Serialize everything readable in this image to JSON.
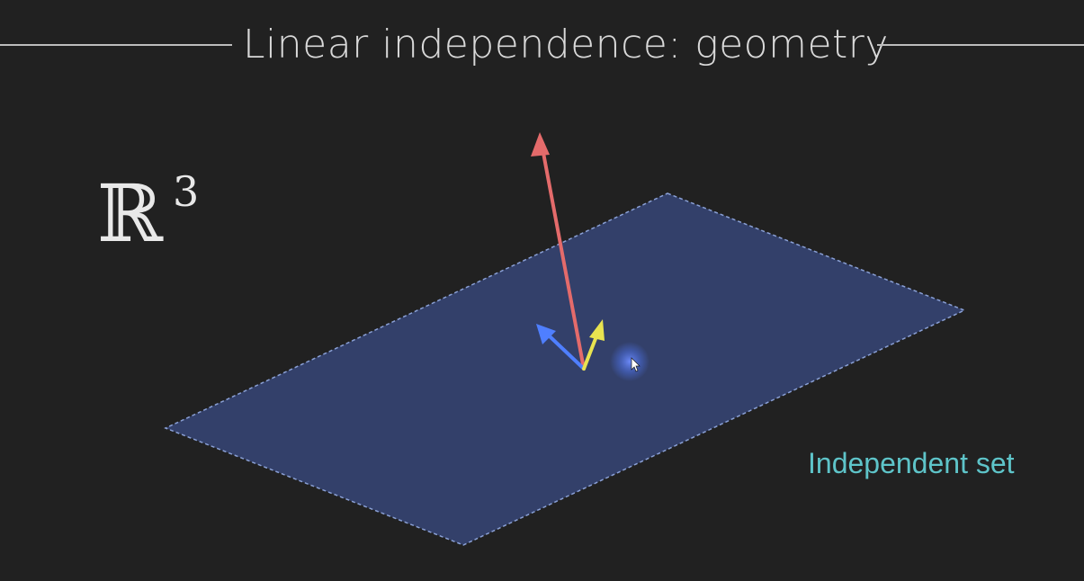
{
  "slide": {
    "title": "Linear independence: geometry",
    "space_symbol": "ℝ",
    "space_exponent": "3",
    "status_label": "Independent set"
  },
  "scene": {
    "plane_fill": "#33406a",
    "plane_edge": "#8aa0d6",
    "vectors": [
      {
        "name": "red-vector",
        "color": "#e46b6b"
      },
      {
        "name": "blue-vector",
        "color": "#4f7fff"
      },
      {
        "name": "yellow-vector",
        "color": "#e8e350"
      }
    ],
    "cursor_halo": "#4a6cd8"
  },
  "colors": {
    "background": "#212121",
    "title_text": "#d9d9d9",
    "status_text": "#5ec4c9"
  }
}
